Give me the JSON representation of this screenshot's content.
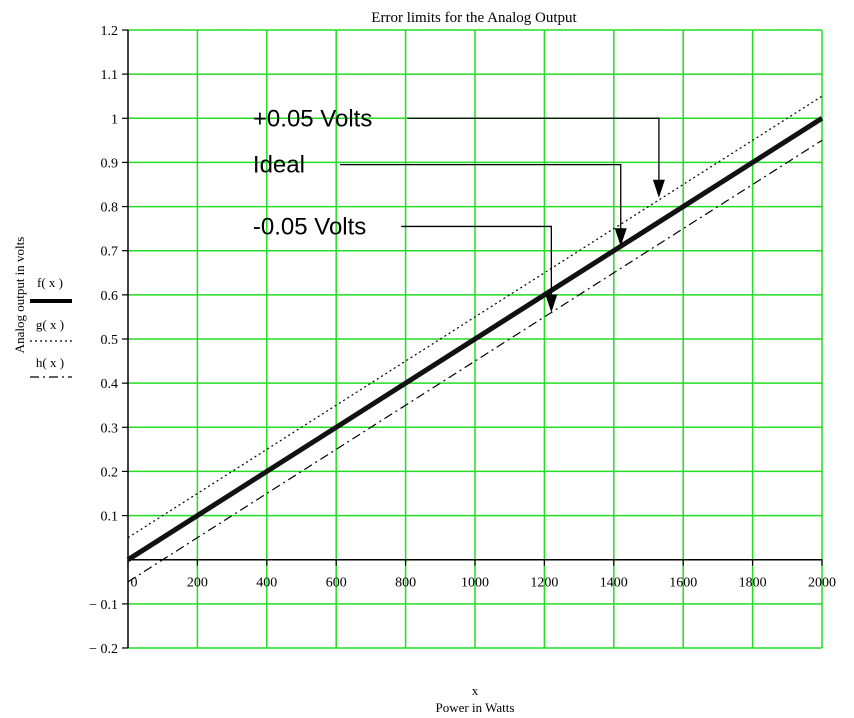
{
  "chart_data": {
    "type": "line",
    "title": "Error limits for the Analog Output",
    "xlabel_var": "x",
    "xlabel": "Power in Watts",
    "ylabel": "Analog output in volts",
    "xlim": [
      0,
      2000
    ],
    "ylim": [
      -0.2,
      1.2
    ],
    "grid": true,
    "grid_color": "#22dd22",
    "x_ticks": [
      0,
      200,
      400,
      600,
      800,
      1000,
      1200,
      1400,
      1600,
      1800,
      2000
    ],
    "x_tick_labels": [
      "0",
      "200",
      "400",
      "600",
      "800",
      "1000",
      "1200",
      "1400",
      "1600",
      "1800",
      "2000"
    ],
    "y_ticks": [
      -0.2,
      -0.1,
      0.1,
      0.2,
      0.3,
      0.4,
      0.5,
      0.6,
      0.7,
      0.8,
      0.9,
      1,
      1.1,
      1.2
    ],
    "y_tick_labels": [
      "− 0.2",
      "− 0.1",
      "0.1",
      "0.2",
      "0.3",
      "0.4",
      "0.5",
      "0.6",
      "0.7",
      "0.8",
      "0.9",
      "1",
      "1.1",
      "1.2"
    ],
    "legend_position": "left",
    "series": [
      {
        "name": "f(x)",
        "style": "thick-solid",
        "x": [
          0,
          2000
        ],
        "y": [
          0,
          1
        ]
      },
      {
        "name": "g(x)",
        "style": "dotted",
        "x": [
          0,
          2000
        ],
        "y": [
          0.05,
          1.05
        ]
      },
      {
        "name": "h(x)",
        "style": "dash-dot",
        "x": [
          0,
          2000
        ],
        "y": [
          -0.05,
          0.95
        ]
      }
    ],
    "annotations": [
      {
        "text": "+0.05 Volts",
        "text_x": 360,
        "text_y": 1.0,
        "point_x": 1530,
        "point_y": 0.82
      },
      {
        "text": "Ideal",
        "text_x": 360,
        "text_y": 0.895,
        "point_x": 1420,
        "point_y": 0.71
      },
      {
        "text": "-0.05 Volts",
        "text_x": 360,
        "text_y": 0.755,
        "point_x": 1220,
        "point_y": 0.56
      }
    ]
  }
}
